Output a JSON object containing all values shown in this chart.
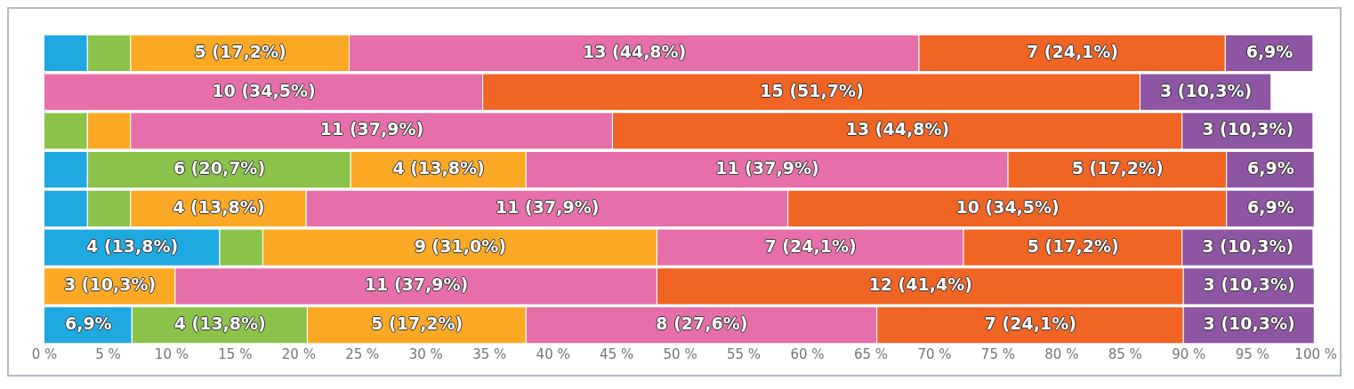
{
  "chart_data": {
    "type": "bar",
    "orientation": "horizontal",
    "stacked": true,
    "grid": false,
    "tick_labels": "x",
    "categories": [
      null,
      null,
      null,
      null,
      null,
      null,
      null,
      null
    ],
    "xlim": [
      0,
      100
    ],
    "xticks": [
      {
        "value": 0,
        "label": "0 %"
      },
      {
        "value": 5,
        "label": "5 %"
      },
      {
        "value": 10,
        "label": "10 %"
      },
      {
        "value": 15,
        "label": "15 %"
      },
      {
        "value": 20,
        "label": "20 %"
      },
      {
        "value": 25,
        "label": "25 %"
      },
      {
        "value": 30,
        "label": "30 %"
      },
      {
        "value": 35,
        "label": "35 %"
      },
      {
        "value": 40,
        "label": "40 %"
      },
      {
        "value": 45,
        "label": "45 %"
      },
      {
        "value": 50,
        "label": "50 %"
      },
      {
        "value": 55,
        "label": "55 %"
      },
      {
        "value": 60,
        "label": "60 %"
      },
      {
        "value": 65,
        "label": "65 %"
      },
      {
        "value": 70,
        "label": "70 %"
      },
      {
        "value": 75,
        "label": "75 %"
      },
      {
        "value": 80,
        "label": "80 %"
      },
      {
        "value": 85,
        "label": "85 %"
      },
      {
        "value": 90,
        "label": "90 %"
      },
      {
        "value": 95,
        "label": "95 %"
      },
      {
        "value": 100,
        "label": "100 %"
      }
    ],
    "series": [
      {
        "color": "#1fa9e1",
        "values": [
          3.4,
          null,
          null,
          3.4,
          3.4,
          13.8,
          null,
          6.9
        ],
        "value_labels": [
          null,
          null,
          null,
          null,
          null,
          "4 (13,8%)",
          null,
          "6,9%"
        ]
      },
      {
        "color": "#8bc34a",
        "values": [
          3.4,
          null,
          3.4,
          20.7,
          3.4,
          3.4,
          null,
          13.8
        ],
        "value_labels": [
          null,
          null,
          null,
          "6 (20,7%)",
          null,
          null,
          null,
          "4 (13,8%)"
        ]
      },
      {
        "color": "#fba924",
        "values": [
          17.2,
          null,
          3.4,
          13.8,
          13.8,
          31.0,
          10.3,
          17.2
        ],
        "value_labels": [
          "5 (17,2%)",
          null,
          null,
          "4 (13,8%)",
          "4 (13,8%)",
          "9 (31,0%)",
          "3 (10,3%)",
          "5 (17,2%)"
        ]
      },
      {
        "color": "#e66fa9",
        "values": [
          44.8,
          34.5,
          37.9,
          37.9,
          37.9,
          24.1,
          37.9,
          27.6
        ],
        "value_labels": [
          "13 (44,8%)",
          "10 (34,5%)",
          "11 (37,9%)",
          "11 (37,9%)",
          "11 (37,9%)",
          "7 (24,1%)",
          "11 (37,9%)",
          "8 (27,6%)"
        ]
      },
      {
        "color": "#f06424",
        "values": [
          24.1,
          51.7,
          44.8,
          17.2,
          34.5,
          17.2,
          41.4,
          24.1
        ],
        "value_labels": [
          "7 (24,1%)",
          "15 (51,7%)",
          "13 (44,8%)",
          "5 (17,2%)",
          "10 (34,5%)",
          "5 (17,2%)",
          "12 (41,4%)",
          "7 (24,1%)"
        ]
      },
      {
        "color": "#8e55a3",
        "values": [
          6.9,
          10.3,
          10.3,
          6.9,
          6.9,
          10.3,
          10.3,
          10.3
        ],
        "value_labels": [
          "6,9%",
          "3 (10,3%)",
          "3 (10,3%)",
          "6,9%",
          "6,9%",
          "3 (10,3%)",
          "3 (10,3%)",
          "3 (10,3%)"
        ]
      }
    ]
  }
}
